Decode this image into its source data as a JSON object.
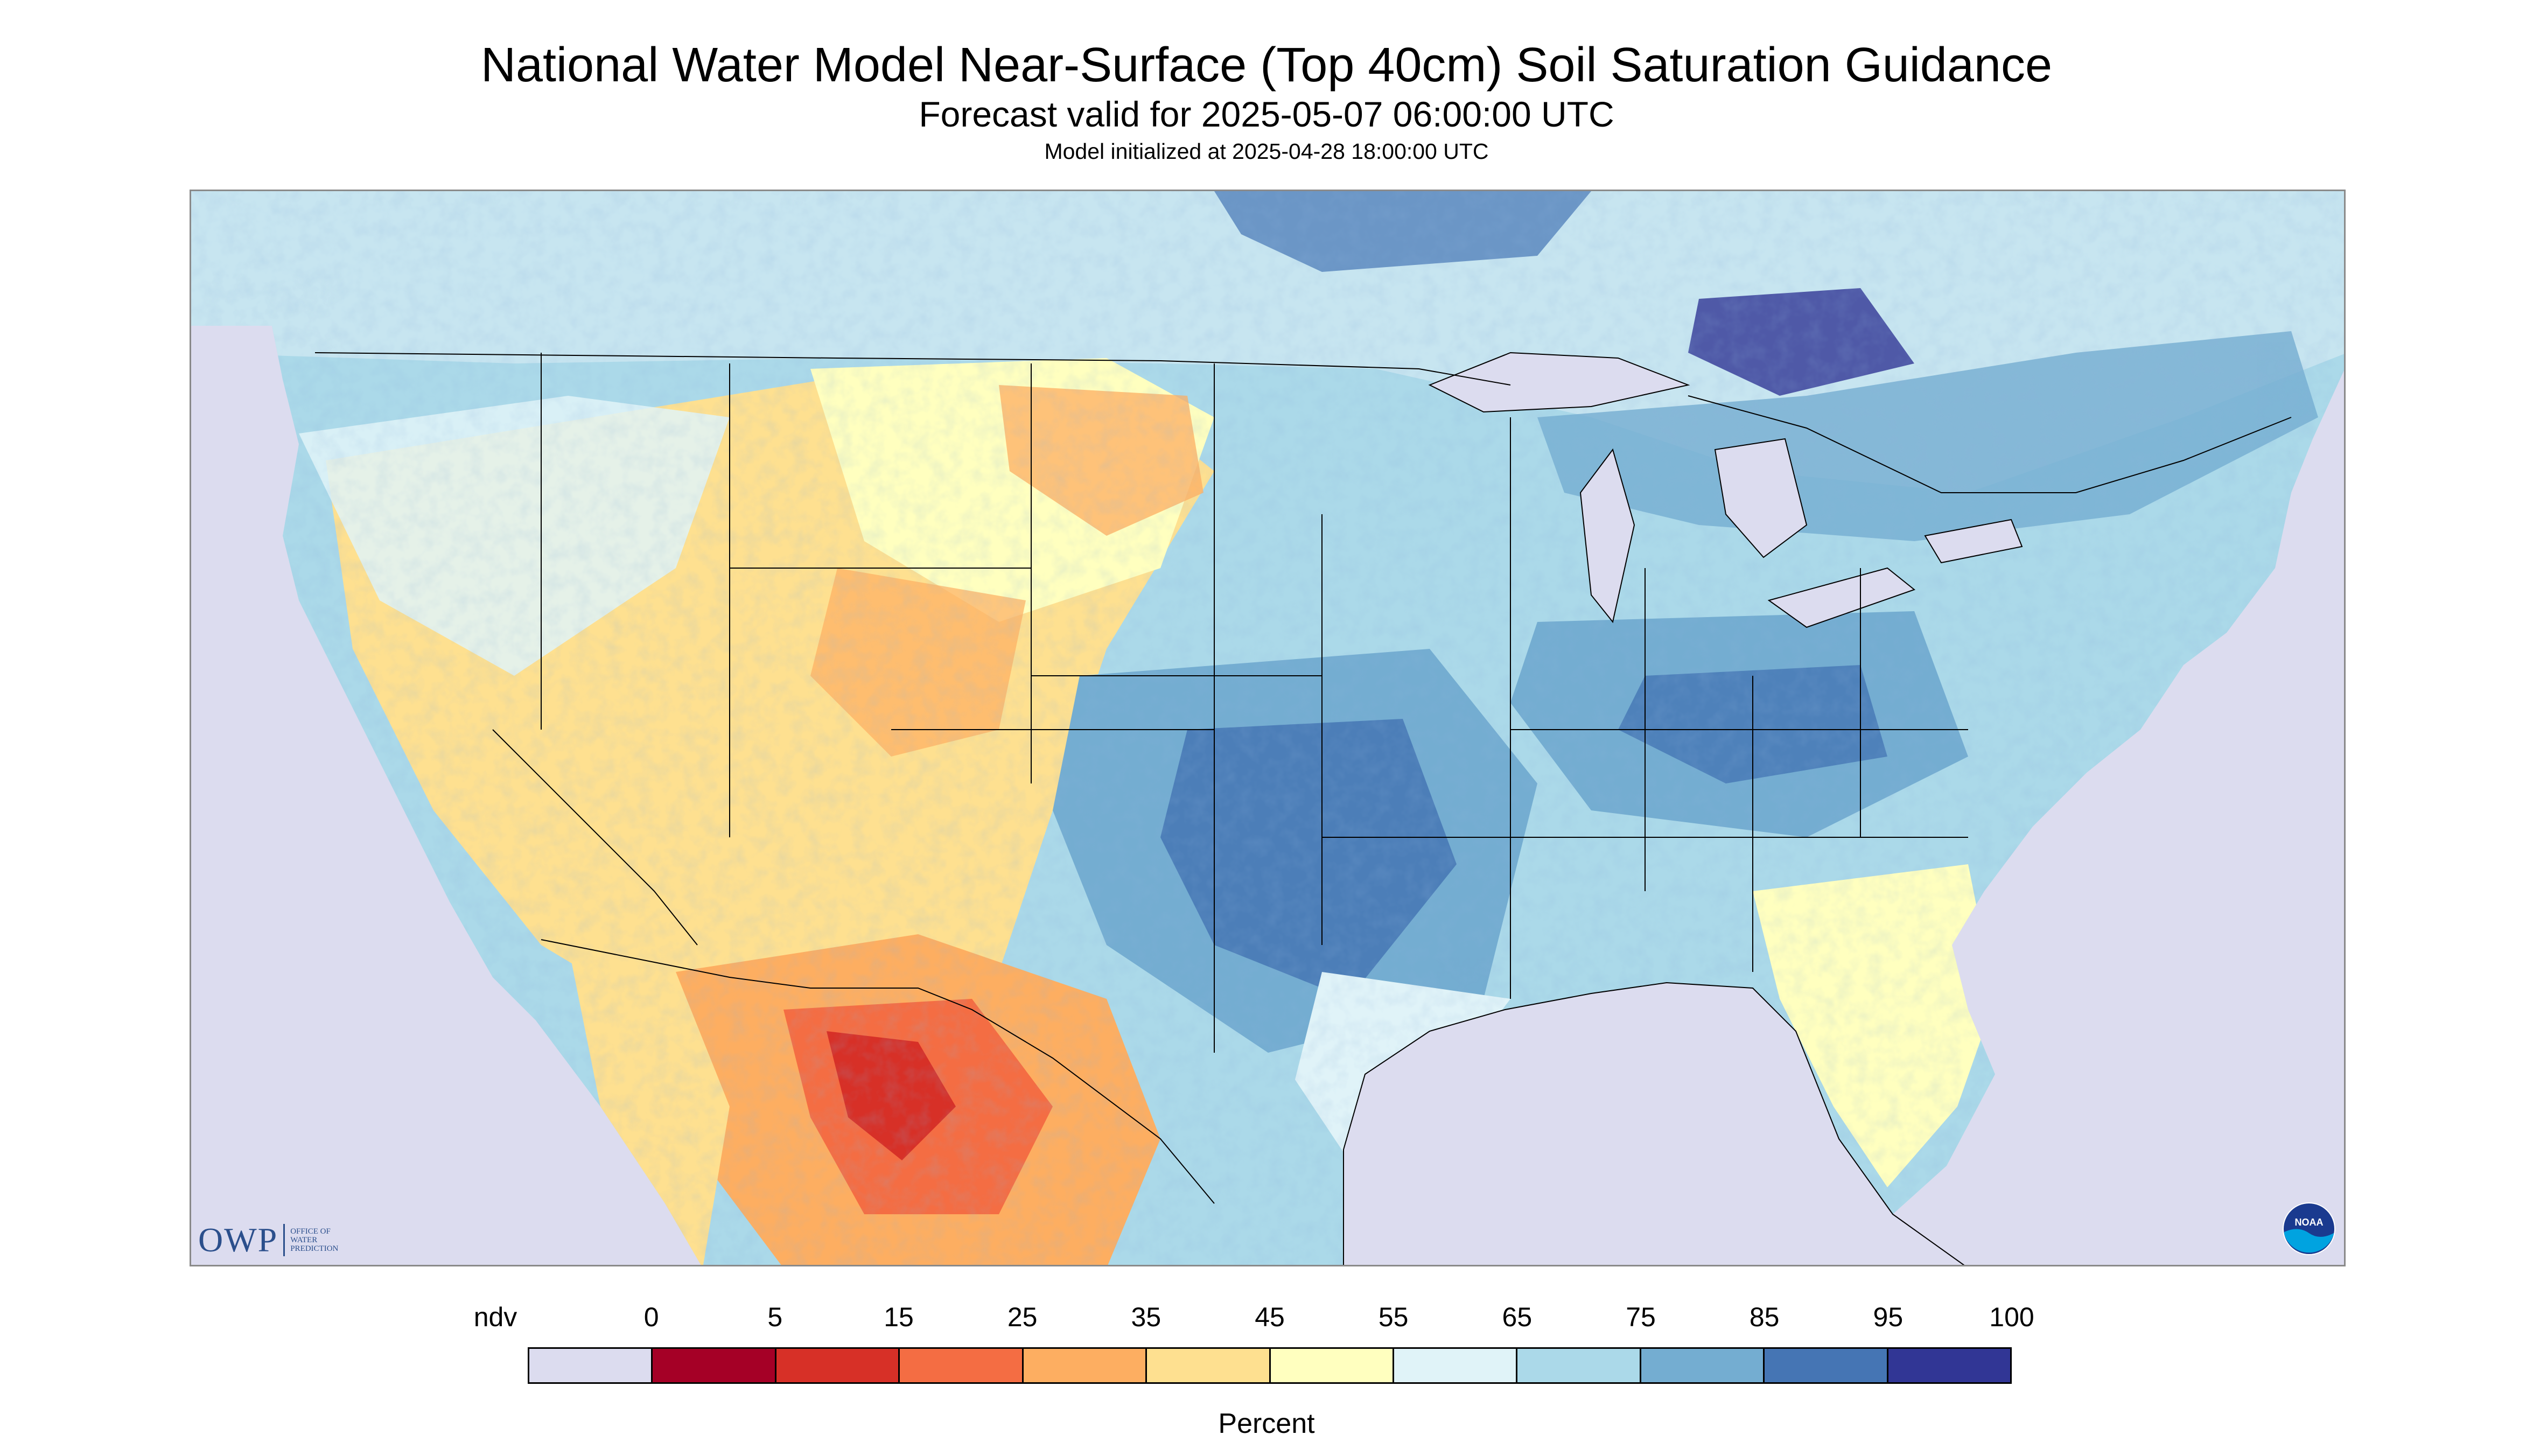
{
  "header": {
    "title": "National Water Model Near-Surface (Top 40cm) Soil Saturation Guidance",
    "subtitle": "Forecast valid for 2025-05-07 06:00:00 UTC",
    "init_line": "Model initialized at 2025-04-28 18:00:00 UTC"
  },
  "logos": {
    "owp_letters": "OWP",
    "owp_text": "OFFICE OF WATER PREDICTION",
    "noaa_text": "NOAA"
  },
  "legend": {
    "unit_label": "Percent",
    "tick_labels": [
      "ndv",
      "0",
      "5",
      "15",
      "25",
      "35",
      "45",
      "55",
      "65",
      "75",
      "85",
      "95",
      "100"
    ],
    "colors": [
      "#dcdcef",
      "#a50026",
      "#d73027",
      "#f46d43",
      "#fdae61",
      "#fee090",
      "#ffffbf",
      "#e0f3f8",
      "#abd9e9",
      "#74add1",
      "#4575b4",
      "#313695"
    ]
  },
  "map": {
    "region": "Continental United States, southern Canada and northern Mexico",
    "no_data_color": "#dcdcef",
    "water_color": "#dcdcef",
    "border_color": "#000000"
  }
}
